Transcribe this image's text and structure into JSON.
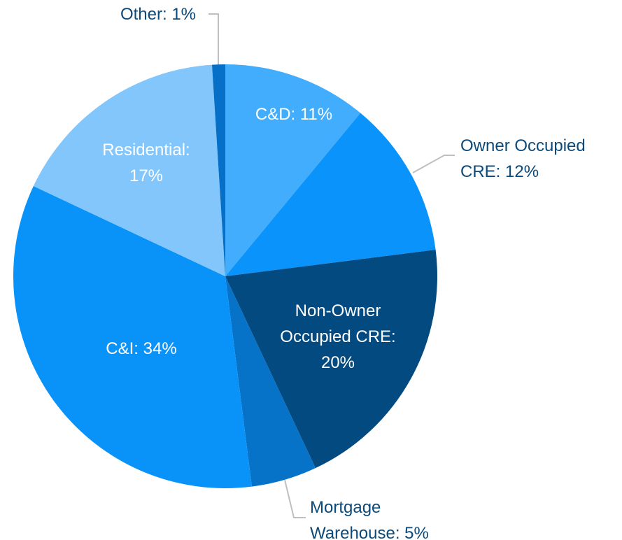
{
  "chart_data": {
    "type": "pie",
    "value_labels": [
      [
        "C&D: 11%"
      ],
      [
        "Owner Occupied",
        "CRE: 12%"
      ],
      [
        "Non-Owner",
        "Occupied CRE:",
        "20%"
      ],
      [
        "Mortgage",
        "Warehouse: 5%"
      ],
      [
        "C&I: 34%"
      ],
      [
        "Residential:",
        "17%"
      ],
      [
        "Other: 1%"
      ]
    ],
    "values": [
      11,
      12,
      20,
      5,
      34,
      17,
      1
    ],
    "colors": [
      "#42adfc",
      "#0a93fb",
      "#034a80",
      "#0672c8",
      "#0993f9",
      "#82c6fc",
      "#0670c8"
    ]
  }
}
